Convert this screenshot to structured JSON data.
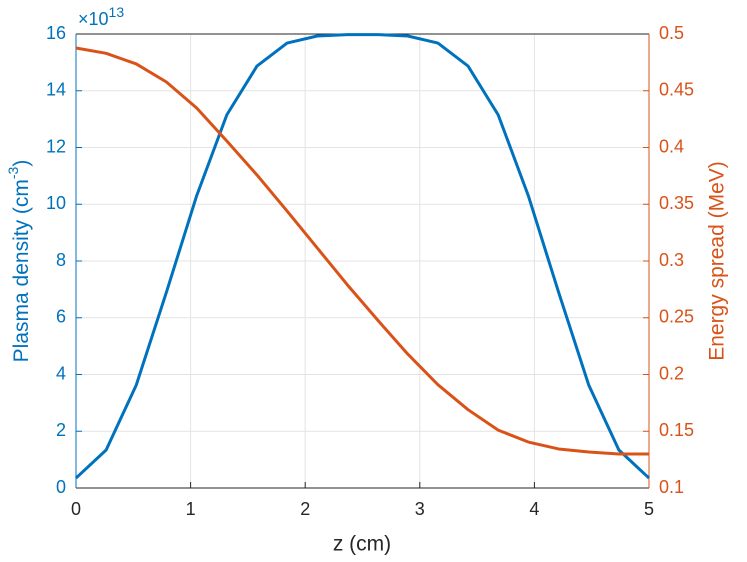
{
  "chart_data": {
    "type": "line",
    "x": [
      0,
      0.263,
      0.526,
      0.789,
      1.053,
      1.316,
      1.579,
      1.842,
      2.105,
      2.368,
      2.632,
      2.895,
      3.158,
      3.421,
      3.684,
      3.947,
      4.211,
      4.474,
      4.737,
      5
    ],
    "series": [
      {
        "name": "Plasma density",
        "color": "#0072bd",
        "axis": "y",
        "values": [
          0.35,
          1.34,
          3.63,
          6.9,
          10.3,
          13.15,
          14.87,
          15.68,
          15.93,
          15.98,
          15.98,
          15.93,
          15.68,
          14.87,
          13.15,
          10.3,
          6.9,
          3.63,
          1.34,
          0.35
        ]
      },
      {
        "name": "Energy spread",
        "color": "#d95319",
        "axis": "y2",
        "values": [
          0.4877,
          0.483,
          0.4736,
          0.4577,
          0.4348,
          0.4057,
          0.3758,
          0.344,
          0.3115,
          0.279,
          0.248,
          0.218,
          0.191,
          0.169,
          0.151,
          0.1405,
          0.1344,
          0.1317,
          0.13,
          0.13
        ]
      }
    ],
    "xlabel": "z (cm)",
    "ylabel": "Plasma density (cm",
    "ylabel_sup": "-3",
    "ylabel_end": ")",
    "y2label": "Energy spread (MeV)",
    "y_multiplier": "×10",
    "y_exponent": "13",
    "xlim": [
      0,
      5
    ],
    "xticks": [
      0,
      1,
      2,
      3,
      4,
      5
    ],
    "ylim": [
      0,
      16
    ],
    "yticks": [
      0,
      2,
      4,
      6,
      8,
      10,
      12,
      14,
      16
    ],
    "y2lim": [
      0.1,
      0.5
    ],
    "y2ticks": [
      0.1,
      0.15,
      0.2,
      0.25,
      0.3,
      0.35,
      0.4,
      0.45,
      0.5
    ],
    "grid": true
  }
}
